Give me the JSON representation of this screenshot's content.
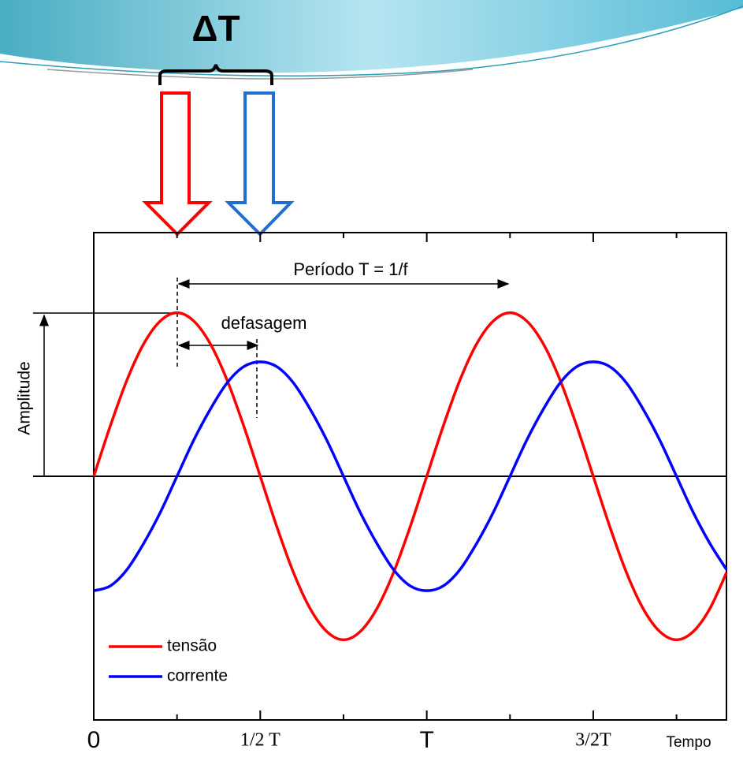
{
  "chart_data": {
    "type": "line",
    "title": "ΔT",
    "x_label": "Tempo",
    "y_label": "Amplitude",
    "annotations": [
      "Período T = 1/f",
      "defasagem"
    ],
    "x": [
      0,
      0.05,
      0.1,
      0.15,
      0.2,
      0.25,
      0.3,
      0.35,
      0.4,
      0.45,
      0.5,
      0.55,
      0.6,
      0.65,
      0.7,
      0.75,
      0.8,
      0.85,
      0.9,
      0.95,
      1,
      1.05,
      1.1,
      1.15,
      1.2,
      1.25,
      1.3,
      1.35,
      1.4,
      1.45,
      1.5,
      1.55,
      1.6,
      1.65,
      1.7,
      1.75,
      1.8,
      1.85,
      1.9
    ],
    "series": [
      {
        "name": "tensão",
        "color": "#ff0000",
        "values": [
          0,
          0.31,
          0.59,
          0.81,
          0.95,
          1,
          0.95,
          0.81,
          0.59,
          0.31,
          0,
          -0.31,
          -0.59,
          -0.81,
          -0.95,
          -1,
          -0.95,
          -0.81,
          -0.59,
          -0.31,
          0,
          0.31,
          0.59,
          0.81,
          0.95,
          1,
          0.95,
          0.81,
          0.59,
          0.31,
          0,
          -0.31,
          -0.59,
          -0.81,
          -0.95,
          -1,
          -0.95,
          -0.81,
          -0.59
        ]
      },
      {
        "name": "corrente",
        "color": "#0000ff",
        "values": [
          -0.7,
          -0.67,
          -0.57,
          -0.41,
          -0.22,
          0,
          0.22,
          0.41,
          0.57,
          0.67,
          0.7,
          0.67,
          0.57,
          0.41,
          0.22,
          0,
          -0.22,
          -0.41,
          -0.57,
          -0.67,
          -0.7,
          -0.67,
          -0.57,
          -0.41,
          -0.22,
          0,
          0.22,
          0.41,
          0.57,
          0.67,
          0.7,
          0.67,
          0.57,
          0.41,
          0.22,
          0,
          -0.22,
          -0.41,
          -0.57
        ]
      }
    ],
    "xlim": [
      0,
      1.9
    ],
    "ylim": [
      -1.49,
      1.49
    ],
    "xticks": [
      0,
      {
        "value": 0.5,
        "label": "1/2 T"
      },
      {
        "value": 1,
        "label": "T"
      },
      {
        "value": 1.5,
        "label": "3/2T"
      }
    ],
    "minor_xticks": [
      0.25,
      0.75,
      1.25,
      1.75
    ],
    "legend": "lower-left",
    "grid": false
  }
}
